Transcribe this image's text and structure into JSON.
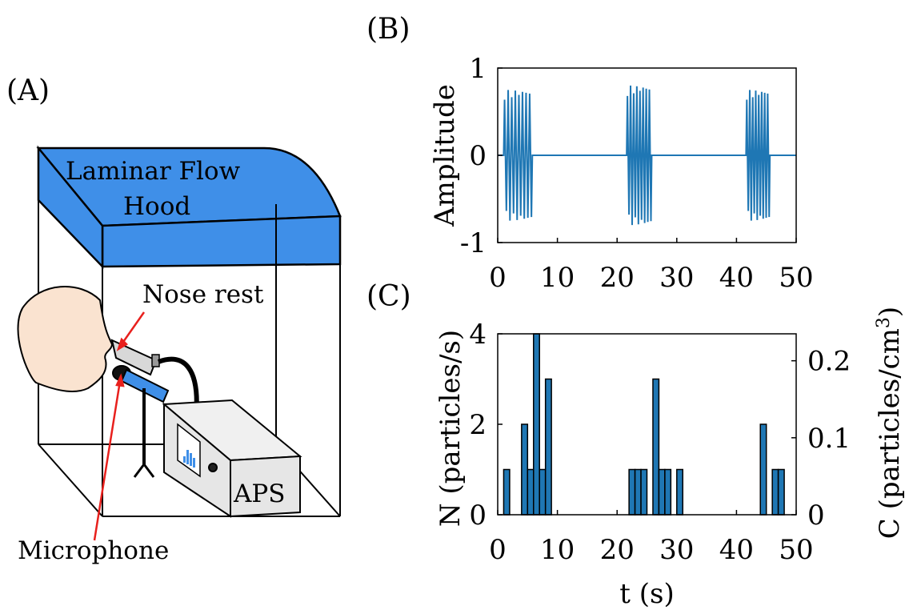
{
  "panels": {
    "a": "(A)",
    "b": "(B)",
    "c": "(C)"
  },
  "diagram": {
    "hood_line1": "Laminar Flow",
    "hood_line2": "Hood",
    "nose_rest": "Nose rest",
    "microphone": "Microphone",
    "aps": "APS",
    "colors": {
      "hood": "#3f8fe8",
      "face": "#fae3d0",
      "arrow": "#e8201d",
      "device": "#e6e6e6"
    }
  },
  "chart_data": [
    {
      "type": "line",
      "panel": "(B)",
      "ylabel": "Amplitude",
      "xlim": [
        0,
        50
      ],
      "ylim": [
        -1,
        1
      ],
      "xticks": [
        "0",
        "10",
        "20",
        "30",
        "40",
        "50"
      ],
      "yticks": [
        "1",
        "0",
        "-1"
      ],
      "series": [
        {
          "color": "#1f77b4",
          "bursts": [
            {
              "start": 1.0,
              "end": 5.8,
              "amplitude": 0.75
            },
            {
              "start": 21.6,
              "end": 25.8,
              "amplitude": 0.8
            },
            {
              "start": 41.6,
              "end": 45.6,
              "amplitude": 0.75
            }
          ]
        }
      ]
    },
    {
      "type": "bar",
      "panel": "(C)",
      "xlabel": "t (s)",
      "ylabel": "N (particles/s)",
      "y2label_main": "C (particles/cm",
      "y2label_sup": "3",
      "y2label_end": ")",
      "xlim": [
        0,
        50
      ],
      "ylim": [
        0,
        4
      ],
      "y2lim": [
        0,
        0.235
      ],
      "xticks": [
        "0",
        "10",
        "20",
        "30",
        "40",
        "50"
      ],
      "yticks": [
        "0",
        "2",
        "4"
      ],
      "y2ticks": [
        "0",
        "0.1",
        "0.2"
      ],
      "bin_width": 1,
      "bars": [
        {
          "x": 1,
          "value": 1
        },
        {
          "x": 4,
          "value": 2
        },
        {
          "x": 5,
          "value": 1
        },
        {
          "x": 6,
          "value": 4
        },
        {
          "x": 7,
          "value": 1
        },
        {
          "x": 8,
          "value": 3
        },
        {
          "x": 22,
          "value": 1
        },
        {
          "x": 23,
          "value": 1
        },
        {
          "x": 24,
          "value": 1
        },
        {
          "x": 26,
          "value": 3
        },
        {
          "x": 27,
          "value": 1
        },
        {
          "x": 28,
          "value": 1
        },
        {
          "x": 30,
          "value": 1
        },
        {
          "x": 44,
          "value": 2
        },
        {
          "x": 46,
          "value": 1
        },
        {
          "x": 47,
          "value": 1
        }
      ],
      "bar_color": "#1f77b4"
    }
  ]
}
